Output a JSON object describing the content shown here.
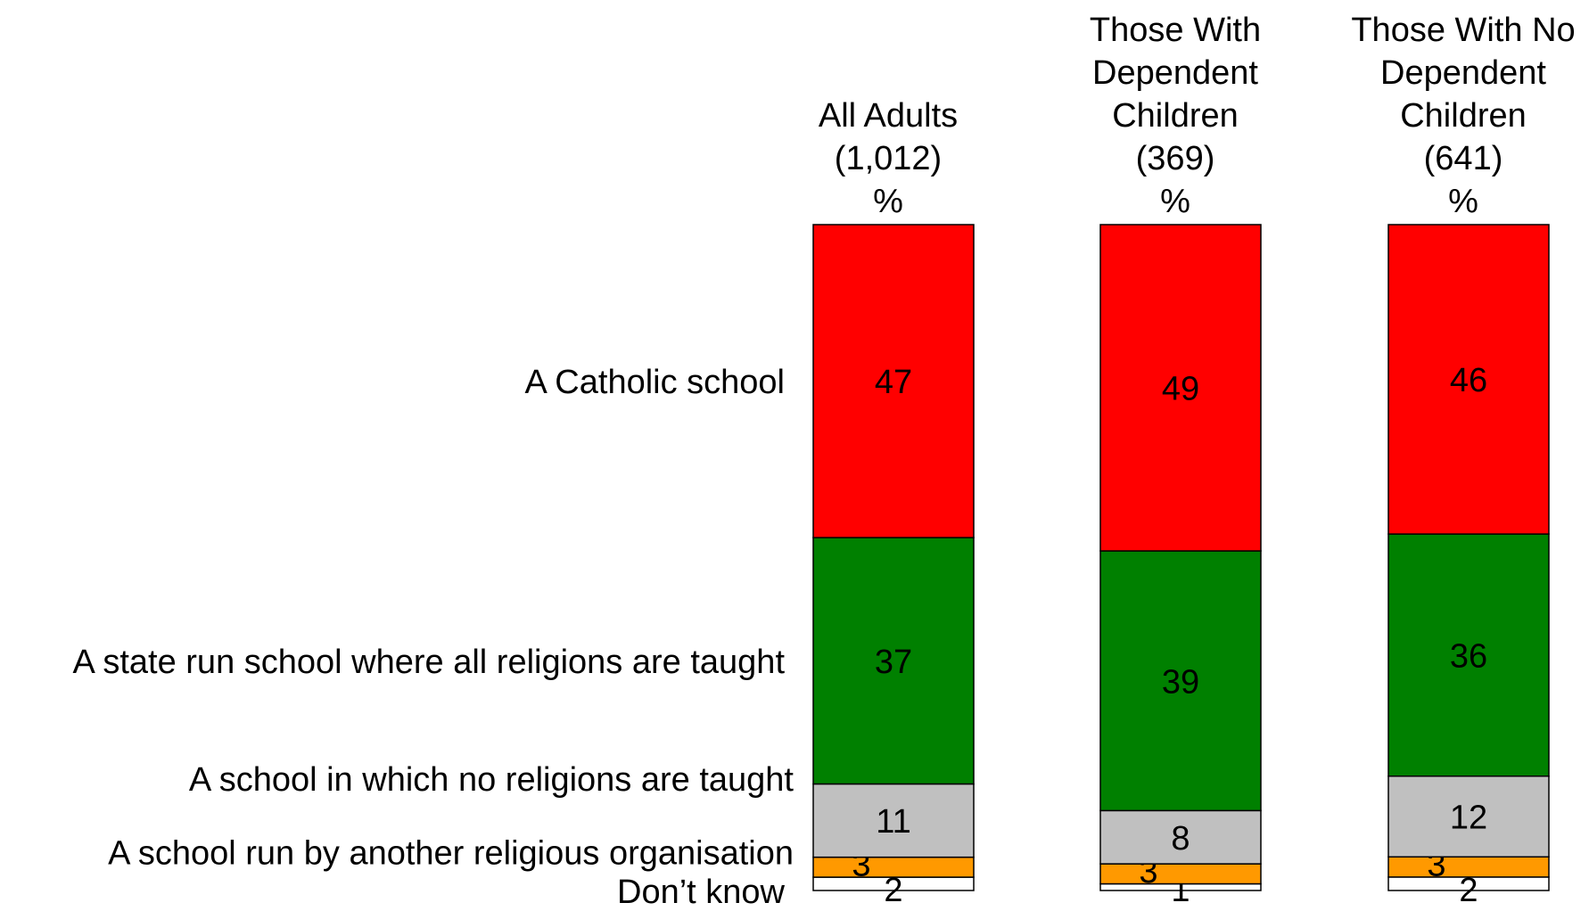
{
  "chart_data": {
    "type": "bar",
    "stacked": true,
    "orientation": "vertical",
    "categories": [
      {
        "lines": [
          "All Adults",
          "(1,012)",
          "%"
        ]
      },
      {
        "lines": [
          "Those With",
          "Dependent",
          "Children",
          "(369)",
          "%"
        ]
      },
      {
        "lines": [
          "Those With No",
          "Dependent",
          "Children",
          "(641)",
          "%"
        ]
      }
    ],
    "series": [
      {
        "name": "A Catholic school",
        "color": "#ff0000",
        "values": [
          47,
          49,
          46
        ]
      },
      {
        "name": "A state run school where all religions are taught",
        "color": "#008000",
        "values": [
          37,
          39,
          36
        ]
      },
      {
        "name": "A school in which no religions are taught",
        "color": "#c0c0c0",
        "values": [
          11,
          8,
          12
        ]
      },
      {
        "name": "A school run by another religious organisation",
        "color": "#ff9900",
        "values": [
          3,
          3,
          3
        ]
      },
      {
        "name": "Don’t know",
        "color": "#ffffff",
        "values": [
          2,
          1,
          2
        ]
      }
    ],
    "ylim": [
      0,
      100
    ],
    "legend": "left",
    "grid": false
  }
}
